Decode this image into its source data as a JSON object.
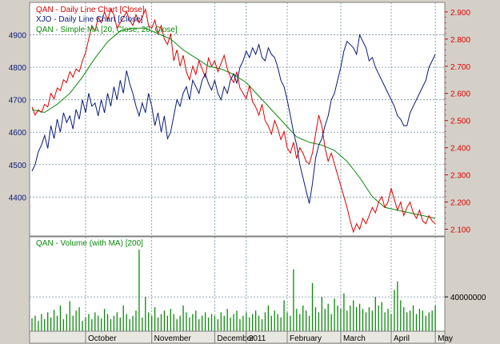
{
  "colors": {
    "qan": "#e00000",
    "xjo": "#0a1a7a",
    "ma": "#0a8a0a",
    "volume": "#0a8a0a",
    "panel_bg": "#ffffff",
    "grid": "#7090a0",
    "frame": "#d4d0c8"
  },
  "chart_data": [
    {
      "type": "line",
      "legend": {
        "position": "top-left",
        "items": [
          "QAN - Daily Line Chart [Close]",
          "XJO - Daily Line Chart [Close]",
          "QAN - Simple MA [20, Close, 20, Close]"
        ]
      },
      "grid": true,
      "left_axis": {
        "series": "XJO",
        "ylim": [
          4280,
          5000
        ],
        "ticks": [
          "4400",
          "4500",
          "4600",
          "4700",
          "4800",
          "4900"
        ],
        "tick_values": [
          4400,
          4500,
          4600,
          4700,
          4800,
          4900
        ]
      },
      "right_axis": {
        "series": "QAN",
        "ylim": [
          2.075,
          2.935
        ],
        "ticks": [
          "2.100",
          "2.200",
          "2.300",
          "2.400",
          "2.500",
          "2.600",
          "2.700",
          "2.800",
          "2.900"
        ],
        "tick_values": [
          2.1,
          2.2,
          2.3,
          2.4,
          2.5,
          2.6,
          2.7,
          2.8,
          2.9
        ]
      },
      "x_axis": {
        "range": [
          0,
          130
        ],
        "ticks": [
          "October",
          "November",
          "December",
          "2011",
          "February",
          "March",
          "April",
          "May"
        ],
        "tick_positions": [
          17,
          38,
          58,
          68,
          81,
          98,
          114,
          128
        ]
      },
      "series": [
        {
          "name": "QAN - Daily Line Chart [Close]",
          "axis": "right",
          "x": [
            0,
            1,
            2,
            3,
            4,
            5,
            6,
            7,
            8,
            9,
            10,
            11,
            12,
            13,
            14,
            15,
            16,
            17,
            18,
            19,
            20,
            21,
            22,
            23,
            24,
            25,
            26,
            27,
            28,
            29,
            30,
            31,
            32,
            33,
            34,
            35,
            36,
            37,
            38,
            39,
            40,
            41,
            42,
            43,
            44,
            45,
            46,
            47,
            48,
            49,
            50,
            51,
            52,
            53,
            54,
            55,
            56,
            57,
            58,
            59,
            60,
            61,
            62,
            63,
            64,
            65,
            66,
            67,
            68,
            69,
            70,
            71,
            72,
            73,
            74,
            75,
            76,
            77,
            78,
            79,
            80,
            81,
            82,
            83,
            84,
            85,
            86,
            87,
            88,
            89,
            90,
            91,
            92,
            93,
            94,
            95,
            96,
            97,
            98,
            99,
            100,
            101,
            102,
            103,
            104,
            105,
            106,
            107,
            108,
            109,
            110,
            111,
            112,
            113,
            114,
            115,
            116,
            117,
            118,
            119,
            120,
            121,
            122,
            123,
            124,
            125,
            126,
            127,
            128
          ],
          "values": [
            2.55,
            2.52,
            2.54,
            2.53,
            2.56,
            2.55,
            2.6,
            2.58,
            2.62,
            2.61,
            2.65,
            2.64,
            2.68,
            2.66,
            2.69,
            2.68,
            2.72,
            2.75,
            2.8,
            2.85,
            2.83,
            2.88,
            2.86,
            2.9,
            2.87,
            2.91,
            2.89,
            2.84,
            2.86,
            2.88,
            2.9,
            2.87,
            2.85,
            2.89,
            2.86,
            2.88,
            2.91,
            2.85,
            2.84,
            2.87,
            2.82,
            2.85,
            2.8,
            2.78,
            2.82,
            2.72,
            2.76,
            2.7,
            2.74,
            2.68,
            2.65,
            2.7,
            2.67,
            2.72,
            2.69,
            2.66,
            2.73,
            2.7,
            2.72,
            2.68,
            2.71,
            2.74,
            2.69,
            2.66,
            2.64,
            2.68,
            2.62,
            2.6,
            2.58,
            2.63,
            2.57,
            2.55,
            2.52,
            2.56,
            2.5,
            2.48,
            2.45,
            2.5,
            2.47,
            2.43,
            2.46,
            2.4,
            2.38,
            2.42,
            2.36,
            2.4,
            2.38,
            2.35,
            2.34,
            2.38,
            2.45,
            2.52,
            2.48,
            2.4,
            2.35,
            2.38,
            2.34,
            2.3,
            2.26,
            2.22,
            2.18,
            2.13,
            2.09,
            2.12,
            2.1,
            2.14,
            2.12,
            2.15,
            2.18,
            2.16,
            2.2,
            2.22,
            2.18,
            2.2,
            2.25,
            2.21,
            2.17,
            2.2,
            2.15,
            2.18,
            2.2,
            2.16,
            2.14,
            2.17,
            2.13,
            2.12,
            2.15,
            2.13,
            2.12
          ]
        },
        {
          "name": "XJO - Daily Line Chart [Close]",
          "axis": "left",
          "x": [
            0,
            1,
            2,
            3,
            4,
            5,
            6,
            7,
            8,
            9,
            10,
            11,
            12,
            13,
            14,
            15,
            16,
            17,
            18,
            19,
            20,
            21,
            22,
            23,
            24,
            25,
            26,
            27,
            28,
            29,
            30,
            31,
            32,
            33,
            34,
            35,
            36,
            37,
            38,
            39,
            40,
            41,
            42,
            43,
            44,
            45,
            46,
            47,
            48,
            49,
            50,
            51,
            52,
            53,
            54,
            55,
            56,
            57,
            58,
            59,
            60,
            61,
            62,
            63,
            64,
            65,
            66,
            67,
            68,
            69,
            70,
            71,
            72,
            73,
            74,
            75,
            76,
            77,
            78,
            79,
            80,
            81,
            82,
            83,
            84,
            85,
            86,
            87,
            88,
            89,
            90,
            91,
            92,
            93,
            94,
            95,
            96,
            97,
            98,
            99,
            100,
            101,
            102,
            103,
            104,
            105,
            106,
            107,
            108,
            109,
            110,
            111,
            112,
            113,
            114,
            115,
            116,
            117,
            118,
            119,
            120,
            121,
            122,
            123,
            124,
            125,
            126,
            127,
            128
          ],
          "values": [
            4480,
            4500,
            4540,
            4560,
            4590,
            4550,
            4620,
            4580,
            4640,
            4600,
            4660,
            4630,
            4650,
            4610,
            4670,
            4640,
            4700,
            4660,
            4720,
            4680,
            4690,
            4650,
            4700,
            4660,
            4720,
            4680,
            4740,
            4700,
            4760,
            4720,
            4790,
            4750,
            4720,
            4680,
            4650,
            4690,
            4660,
            4720,
            4680,
            4620,
            4660,
            4600,
            4650,
            4580,
            4600,
            4650,
            4700,
            4680,
            4720,
            4740,
            4700,
            4760,
            4740,
            4720,
            4760,
            4780,
            4750,
            4730,
            4760,
            4720,
            4700,
            4740,
            4720,
            4760,
            4780,
            4750,
            4800,
            4820,
            4850,
            4830,
            4860,
            4840,
            4870,
            4830,
            4820,
            4860,
            4840,
            4830,
            4800,
            4760,
            4740,
            4700,
            4650,
            4600,
            4560,
            4500,
            4460,
            4420,
            4380,
            4440,
            4520,
            4560,
            4580,
            4620,
            4650,
            4700,
            4720,
            4760,
            4800,
            4850,
            4880,
            4870,
            4860,
            4840,
            4900,
            4880,
            4860,
            4820,
            4830,
            4800,
            4780,
            4760,
            4740,
            4720,
            4700,
            4680,
            4650,
            4640,
            4620,
            4620,
            4660,
            4680,
            4700,
            4720,
            4740,
            4760,
            4800,
            4820,
            4840
          ]
        },
        {
          "name": "QAN - Simple MA [20, Close, 20, Close]",
          "axis": "right",
          "x": [
            0,
            4,
            8,
            12,
            16,
            20,
            24,
            28,
            32,
            36,
            40,
            44,
            48,
            52,
            56,
            60,
            64,
            68,
            72,
            76,
            80,
            84,
            88,
            92,
            96,
            100,
            104,
            108,
            112,
            116,
            120,
            124,
            128
          ],
          "values": [
            2.54,
            2.53,
            2.56,
            2.6,
            2.66,
            2.73,
            2.79,
            2.83,
            2.84,
            2.84,
            2.82,
            2.8,
            2.76,
            2.73,
            2.7,
            2.69,
            2.67,
            2.64,
            2.59,
            2.54,
            2.49,
            2.44,
            2.42,
            2.41,
            2.39,
            2.35,
            2.29,
            2.22,
            2.18,
            2.17,
            2.16,
            2.15,
            2.14
          ]
        }
      ]
    },
    {
      "type": "bar",
      "legend": {
        "position": "top-left",
        "items": [
          "QAN - Volume (with MA) [200]"
        ]
      },
      "right_axis": {
        "ticks": [
          "40000000"
        ],
        "tick_values": [
          40000000
        ],
        "ylim": [
          0,
          110000000
        ]
      },
      "x": [
        0,
        1,
        2,
        3,
        4,
        5,
        6,
        7,
        8,
        9,
        10,
        11,
        12,
        13,
        14,
        15,
        16,
        17,
        18,
        19,
        20,
        21,
        22,
        23,
        24,
        25,
        26,
        27,
        28,
        29,
        30,
        31,
        32,
        33,
        34,
        35,
        36,
        37,
        38,
        39,
        40,
        41,
        42,
        43,
        44,
        45,
        46,
        47,
        48,
        49,
        50,
        51,
        52,
        53,
        54,
        55,
        56,
        57,
        58,
        59,
        60,
        61,
        62,
        63,
        64,
        65,
        66,
        67,
        68,
        69,
        70,
        71,
        72,
        73,
        74,
        75,
        76,
        77,
        78,
        79,
        80,
        81,
        82,
        83,
        84,
        85,
        86,
        87,
        88,
        89,
        90,
        91,
        92,
        93,
        94,
        95,
        96,
        97,
        98,
        99,
        100,
        101,
        102,
        103,
        104,
        105,
        106,
        107,
        108,
        109,
        110,
        111,
        112,
        113,
        114,
        115,
        116,
        117,
        118,
        119,
        120,
        121,
        122,
        123,
        124,
        125,
        126,
        127,
        128
      ],
      "values": [
        15000000,
        18000000,
        12000000,
        20000000,
        14000000,
        22000000,
        16000000,
        25000000,
        18000000,
        30000000,
        14000000,
        20000000,
        35000000,
        18000000,
        24000000,
        28000000,
        12000000,
        16000000,
        20000000,
        14000000,
        22000000,
        18000000,
        15000000,
        26000000,
        20000000,
        14000000,
        18000000,
        22000000,
        16000000,
        30000000,
        20000000,
        14000000,
        18000000,
        24000000,
        95000000,
        16000000,
        40000000,
        22000000,
        18000000,
        28000000,
        16000000,
        20000000,
        24000000,
        18000000,
        26000000,
        20000000,
        14000000,
        18000000,
        30000000,
        22000000,
        16000000,
        20000000,
        24000000,
        14000000,
        18000000,
        22000000,
        16000000,
        20000000,
        18000000,
        14000000,
        22000000,
        18000000,
        26000000,
        16000000,
        20000000,
        24000000,
        14000000,
        18000000,
        22000000,
        16000000,
        20000000,
        24000000,
        18000000,
        14000000,
        22000000,
        30000000,
        18000000,
        24000000,
        20000000,
        16000000,
        36000000,
        22000000,
        18000000,
        72000000,
        26000000,
        20000000,
        30000000,
        24000000,
        18000000,
        56000000,
        28000000,
        22000000,
        40000000,
        26000000,
        32000000,
        20000000,
        38000000,
        30000000,
        26000000,
        44000000,
        24000000,
        30000000,
        36000000,
        28000000,
        32000000,
        26000000,
        22000000,
        28000000,
        24000000,
        40000000,
        30000000,
        34000000,
        22000000,
        26000000,
        20000000,
        48000000,
        58000000,
        36000000,
        28000000,
        22000000,
        24000000,
        30000000,
        20000000,
        26000000,
        24000000,
        18000000,
        22000000,
        24000000,
        30000000
      ]
    }
  ]
}
